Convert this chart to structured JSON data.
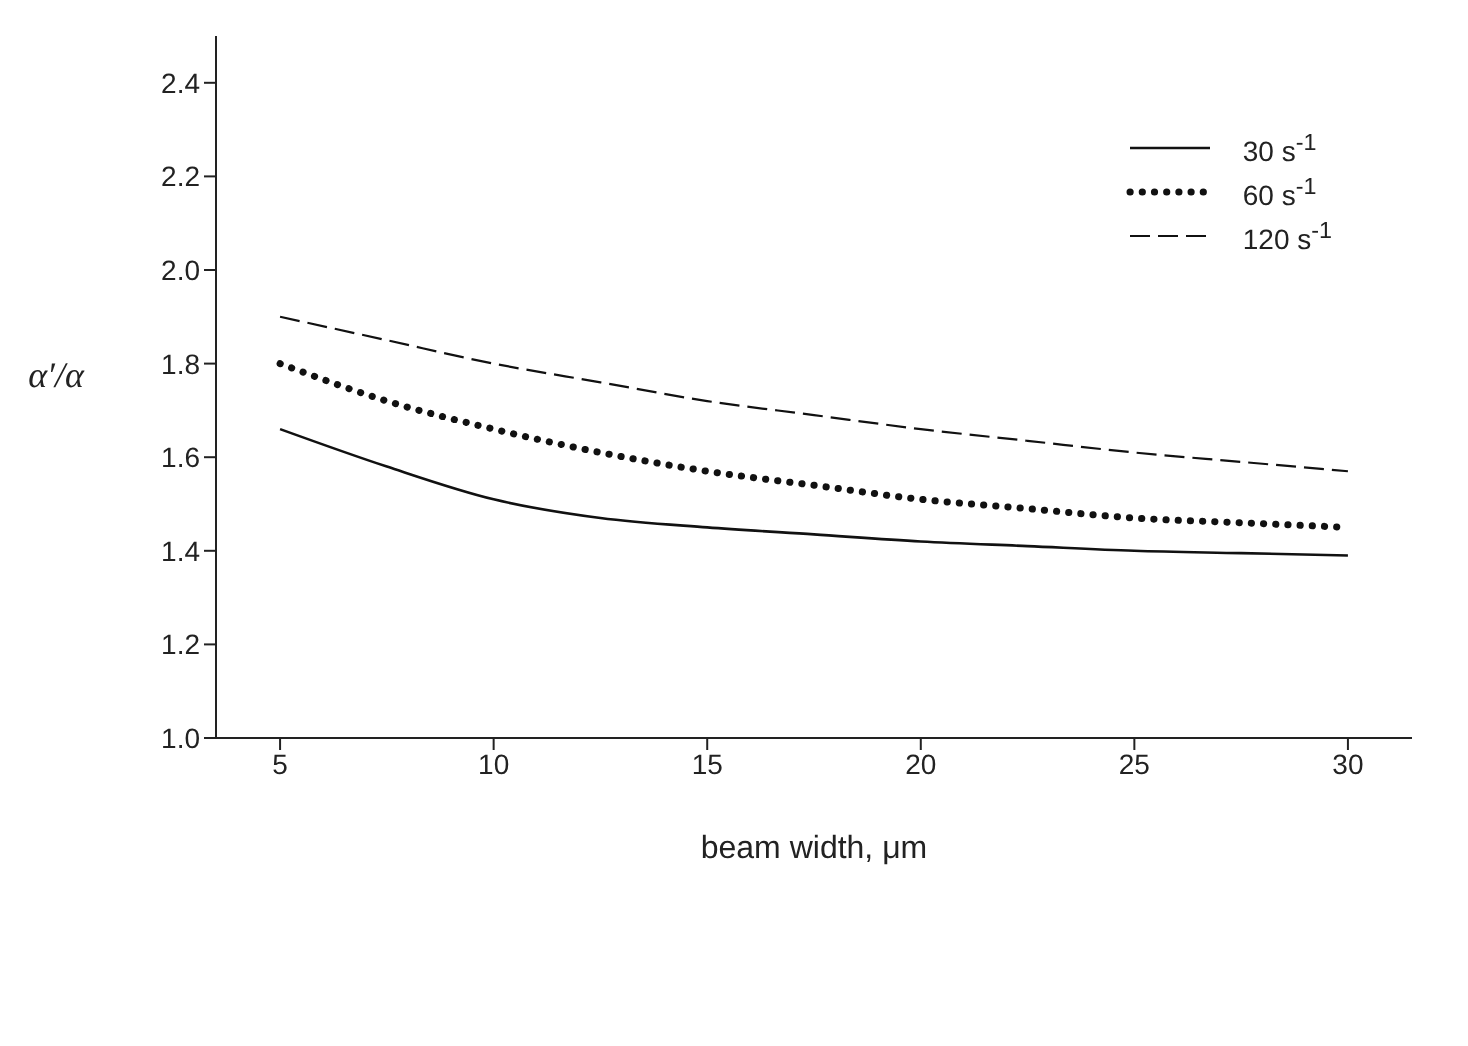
{
  "chart_data": {
    "type": "line",
    "xlabel": "beam width, μm",
    "ylabel": "α′/α",
    "x": [
      5,
      7.5,
      10,
      12.5,
      15,
      17.5,
      20,
      22.5,
      25,
      27.5,
      30
    ],
    "series": [
      {
        "name": "30 s$^{-1}$",
        "color": "#111111",
        "line_style": "solid",
        "values": [
          1.66,
          1.58,
          1.51,
          1.47,
          1.45,
          1.435,
          1.42,
          1.41,
          1.4,
          1.395,
          1.39
        ]
      },
      {
        "name": "60 s$^{-1}$",
        "color": "#111111",
        "line_style": "dotted",
        "values": [
          1.8,
          1.72,
          1.66,
          1.61,
          1.57,
          1.54,
          1.51,
          1.49,
          1.47,
          1.46,
          1.45
        ]
      },
      {
        "name": "120 s$^{-1}$",
        "color": "#111111",
        "line_style": "dashed",
        "values": [
          1.9,
          1.85,
          1.8,
          1.76,
          1.72,
          1.69,
          1.66,
          1.635,
          1.61,
          1.59,
          1.57
        ]
      }
    ],
    "xlim": [
      3.5,
      31.5
    ],
    "xticks": [
      5,
      10,
      15,
      20,
      25,
      30
    ],
    "ylim": [
      1.0,
      2.5
    ],
    "yticks": [
      {
        "value": 1.0,
        "label": "1.0"
      },
      {
        "value": 1.2,
        "label": "1.2"
      },
      {
        "value": 1.4,
        "label": "1.4"
      },
      {
        "value": 1.6,
        "label": "1.6"
      },
      {
        "value": 1.8,
        "label": "1.8"
      },
      {
        "value": 2.0,
        "label": "2.0"
      },
      {
        "value": 2.2,
        "label": "2.2"
      },
      {
        "value": 2.4,
        "label": "2.4"
      }
    ],
    "grid": false,
    "legend": "top right",
    "marker": "none"
  }
}
